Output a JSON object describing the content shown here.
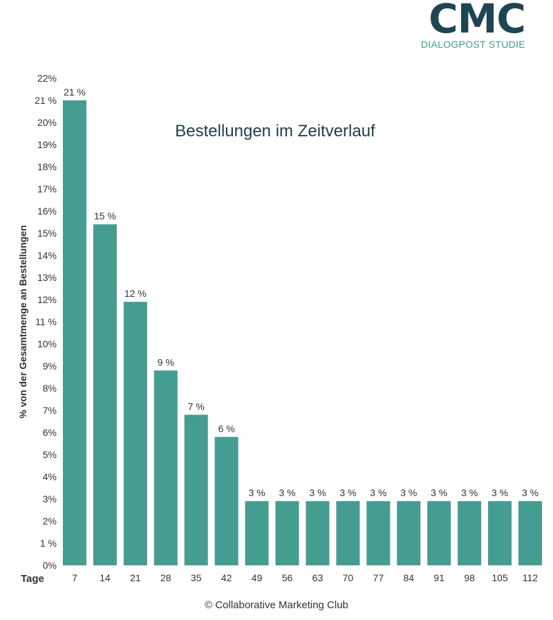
{
  "logo": {
    "mark": "CMC",
    "subtitle": "DIALOGPOST STUDIE"
  },
  "footer": {
    "copyright_symbol": "©",
    "text": "Collaborative Marketing Club"
  },
  "colors": {
    "bar": "#459c91",
    "title": "#1e3d4a",
    "text": "#333333"
  },
  "chart_data": {
    "type": "bar",
    "title": "Bestellungen im Zeitverlauf",
    "xlabel": "Tage",
    "ylabel": "% von der Gesamtmenge an Bestellungen",
    "categories": [
      "7",
      "14",
      "21",
      "28",
      "35",
      "42",
      "49",
      "56",
      "63",
      "70",
      "77",
      "84",
      "91",
      "98",
      "105",
      "112"
    ],
    "values": [
      21,
      15.4,
      11.9,
      8.8,
      6.8,
      5.8,
      2.9,
      2.9,
      2.9,
      2.9,
      2.9,
      2.9,
      2.9,
      2.9,
      2.9,
      2.9
    ],
    "data_labels": [
      "21 %",
      "15 %",
      "12 %",
      "9 %",
      "7 %",
      "6 %",
      "3 %",
      "3 %",
      "3 %",
      "3 %",
      "3 %",
      "3 %",
      "3 %",
      "3 %",
      "3 %",
      "3 %"
    ],
    "ylim": [
      0,
      22
    ],
    "yticks": [
      "0%",
      "1 %",
      "2%",
      "3%",
      "4%",
      "5%",
      "6%",
      "7%",
      "8%",
      "9%",
      "10%",
      "11 %",
      "12%",
      "13%",
      "14%",
      "15%",
      "16%",
      "17%",
      "18%",
      "19%",
      "20%",
      "21 %",
      "22%"
    ],
    "grid": false,
    "legend": "none"
  }
}
